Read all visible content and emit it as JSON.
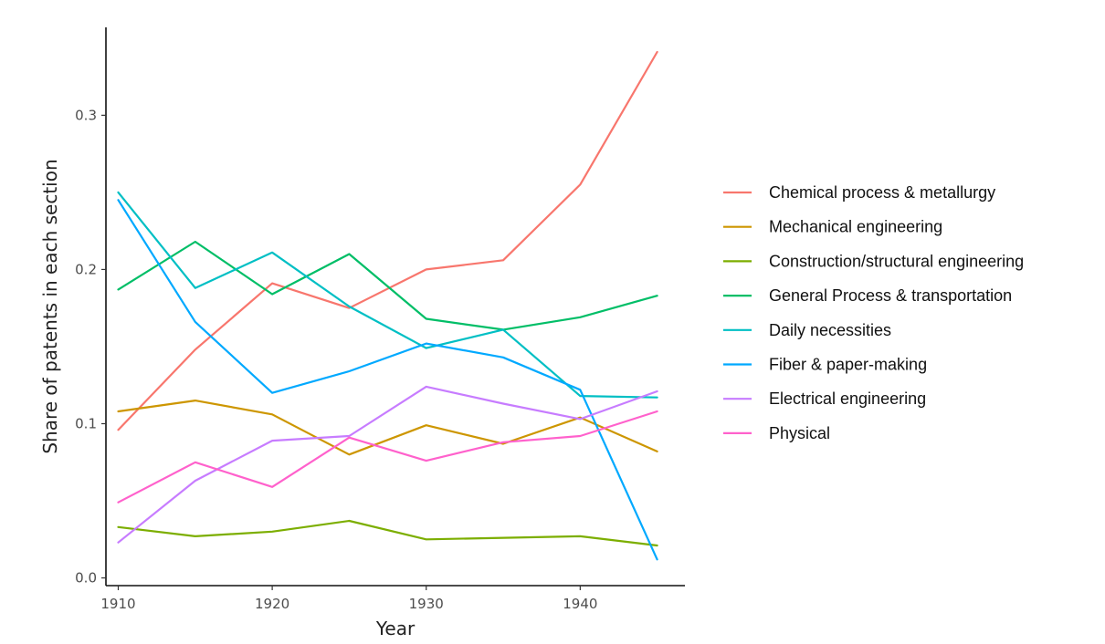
{
  "chart_data": {
    "type": "line",
    "title": "",
    "xlabel": "Year",
    "ylabel": "Share of patents in each section",
    "x": [
      1910,
      1915,
      1920,
      1925,
      1930,
      1935,
      1940,
      1945
    ],
    "xticks": [
      "1910",
      "1920",
      "1930",
      "1940"
    ],
    "yticks": [
      "0.0",
      "0.1",
      "0.2",
      "0.3"
    ],
    "xlim": [
      1909.2,
      1946.8
    ],
    "ylim": [
      -0.005,
      0.357
    ],
    "grid": false,
    "legend_position": "right",
    "series": [
      {
        "name": "Chemical process & metallurgy",
        "color": "#F8766D",
        "values": [
          0.096,
          0.148,
          0.191,
          0.175,
          0.2,
          0.206,
          0.255,
          0.341
        ]
      },
      {
        "name": "Mechanical engineering",
        "color": "#CD9600",
        "values": [
          0.108,
          0.115,
          0.106,
          0.08,
          0.099,
          0.087,
          0.104,
          0.082
        ]
      },
      {
        "name": "Construction/structural engineering",
        "color": "#7CAE00",
        "values": [
          0.033,
          0.027,
          0.03,
          0.037,
          0.025,
          0.026,
          0.027,
          0.021
        ]
      },
      {
        "name": "General Process & transportation",
        "color": "#00BE67",
        "values": [
          0.187,
          0.218,
          0.184,
          0.21,
          0.168,
          0.161,
          0.169,
          0.183
        ]
      },
      {
        "name": "Daily necessities",
        "color": "#00BFC4",
        "values": [
          0.25,
          0.188,
          0.211,
          0.176,
          0.149,
          0.161,
          0.118,
          0.117
        ]
      },
      {
        "name": "Fiber & paper-making",
        "color": "#00A9FF",
        "values": [
          0.245,
          0.166,
          0.12,
          0.134,
          0.152,
          0.143,
          0.122,
          0.012
        ]
      },
      {
        "name": "Electrical engineering",
        "color": "#C77CFF",
        "values": [
          0.023,
          0.063,
          0.089,
          0.092,
          0.124,
          0.113,
          0.103,
          0.121
        ]
      },
      {
        "name": "Physical",
        "color": "#FF61CC",
        "values": [
          0.049,
          0.075,
          0.059,
          0.091,
          0.076,
          0.088,
          0.092,
          0.108
        ]
      }
    ]
  }
}
